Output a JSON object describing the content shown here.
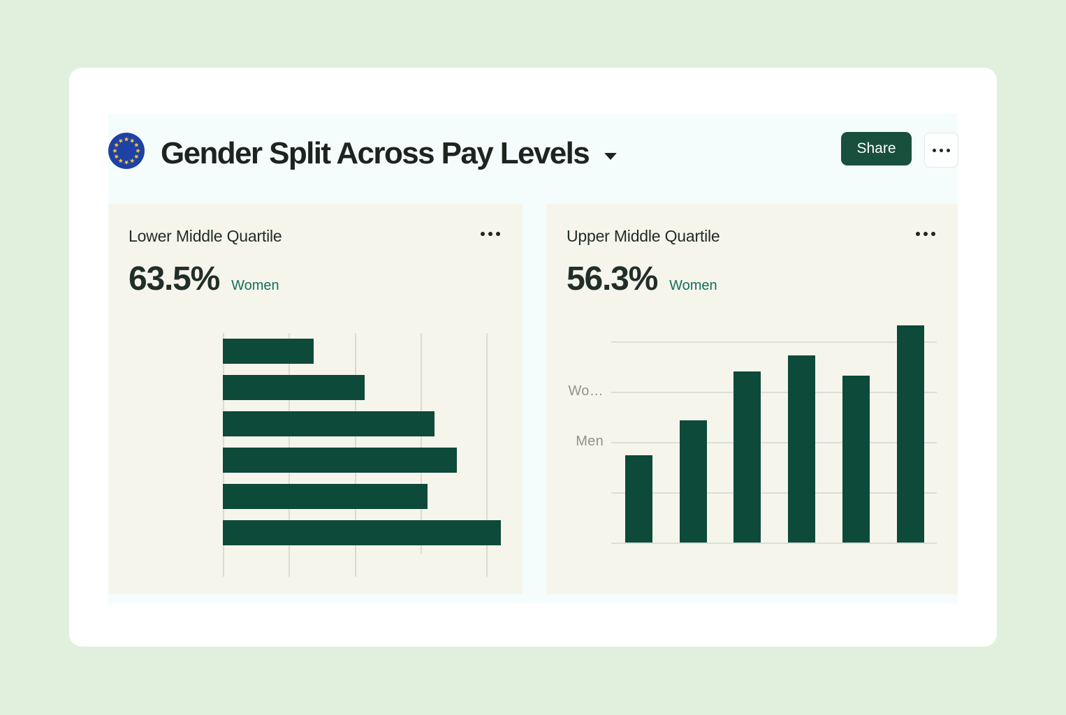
{
  "header": {
    "title": "Gender Split Across Pay Levels",
    "share_label": "Share",
    "logo": "eu-flag"
  },
  "panels": [
    {
      "title": "Lower Middle Quartile",
      "stat_value": "63.5%",
      "stat_label": "Women"
    },
    {
      "title": "Upper Middle Quartile",
      "stat_value": "56.3%",
      "stat_label": "Women"
    }
  ],
  "colors": {
    "page_background": "#e0f0dd",
    "card": "#ffffff",
    "section_background": "#f5fcfc",
    "panel_background": "#f6f5ec",
    "bar": "#0d4a3a",
    "share_button": "#184f3d",
    "stat_label_green": "#10705a",
    "axis_label_gray": "#8e938e",
    "eu_flag_blue": "#1f41a5",
    "eu_star_gold": "#f8c83c"
  },
  "chart_data": [
    {
      "type": "bar",
      "orientation": "horizontal",
      "title": "Lower Middle Quartile",
      "highlight": {
        "value": "63.5%",
        "label": "Women"
      },
      "xlabel": "",
      "ylabel": "",
      "grid": true,
      "gridline_count": 5,
      "axis_tick_labels": [],
      "note": "axes unlabeled; values estimated in gridline units (one unit = spacing between vertical gridlines)",
      "values_grid_units": [
        1.38,
        2.15,
        3.21,
        3.55,
        3.11,
        4.22
      ],
      "values_pct_of_max": [
        32.7,
        51.0,
        76.1,
        84.2,
        73.7,
        100
      ],
      "bar_color": "#0d4a3a"
    },
    {
      "type": "bar",
      "orientation": "vertical",
      "title": "Upper Middle Quartile",
      "highlight": {
        "value": "56.3%",
        "label": "Women"
      },
      "xlabel": "",
      "ylabel": "",
      "grid": true,
      "gridline_count": 5,
      "ytick_labels": [
        {
          "label": "Men",
          "grid_unit": 2
        },
        {
          "label": "Wo…",
          "grid_unit": 3
        }
      ],
      "note": "x categories unlabeled; heights estimated in gridline units (one unit = spacing between horizontal gridlines)",
      "values_grid_units": [
        1.74,
        2.43,
        3.4,
        3.72,
        3.32,
        4.32
      ],
      "values_pct_of_max": [
        40.2,
        56.3,
        78.8,
        86.2,
        76.8,
        100
      ],
      "bar_color": "#0d4a3a"
    }
  ]
}
